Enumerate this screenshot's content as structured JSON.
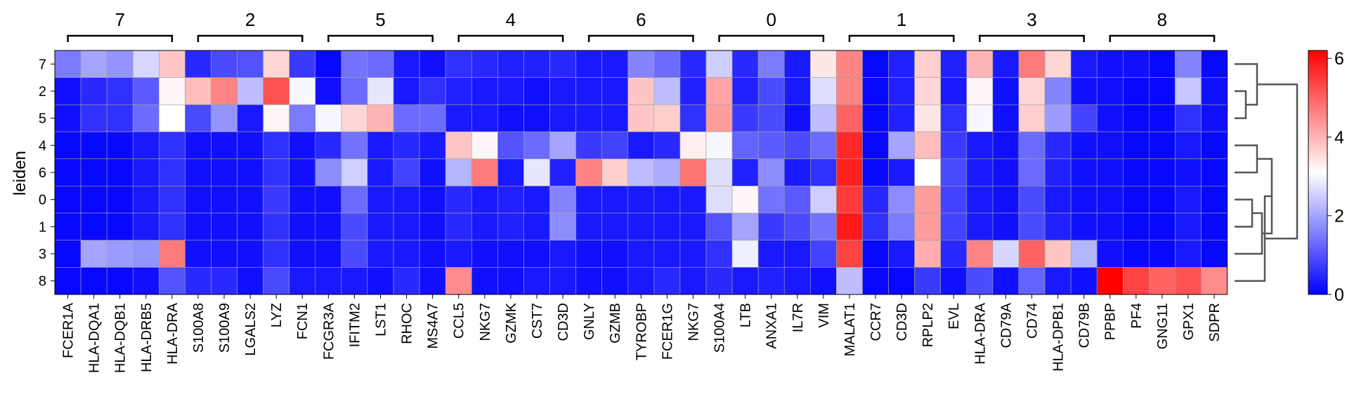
{
  "chart_data": {
    "type": "heatmap",
    "ylabel": "leiden",
    "rows": [
      "7",
      "2",
      "5",
      "4",
      "6",
      "0",
      "1",
      "3",
      "8"
    ],
    "columns": [
      "FCER1A",
      "HLA-DQA1",
      "HLA-DQB1",
      "HLA-DRB5",
      "HLA-DRA",
      "S100A8",
      "S100A9",
      "LGALS2",
      "LYZ",
      "FCN1",
      "FCGR3A",
      "IFITM2",
      "LST1",
      "RHOC",
      "MS4A7",
      "CCL5",
      "NKG7",
      "GZMK",
      "CST7",
      "CD3D",
      "GNLY",
      "GZMB",
      "TYROBP",
      "FCER1G",
      "NKG7",
      "S100A4",
      "LTB",
      "ANXA1",
      "IL7R",
      "VIM",
      "MALAT1",
      "CCR7",
      "CD3D",
      "RPLP2",
      "EVL",
      "HLA-DRA",
      "CD79A",
      "CD74",
      "HLA-DPB1",
      "CD79B",
      "PPBP",
      "PF4",
      "GNG11",
      "GPX1",
      "SDPR"
    ],
    "groups": [
      {
        "label": "7",
        "count": 5
      },
      {
        "label": "2",
        "count": 5
      },
      {
        "label": "5",
        "count": 5
      },
      {
        "label": "4",
        "count": 5
      },
      {
        "label": "6",
        "count": 5
      },
      {
        "label": "0",
        "count": 5
      },
      {
        "label": "1",
        "count": 5
      },
      {
        "label": "3",
        "count": 5
      },
      {
        "label": "8",
        "count": 5
      }
    ],
    "values": [
      [
        1.5,
        2.0,
        1.8,
        2.6,
        3.8,
        0.5,
        0.9,
        1.0,
        3.6,
        0.7,
        0.1,
        1.4,
        1.3,
        0.3,
        0.2,
        0.6,
        0.5,
        0.4,
        0.4,
        0.5,
        0.3,
        0.3,
        1.6,
        1.3,
        0.5,
        2.5,
        0.5,
        1.5,
        0.3,
        3.4,
        4.6,
        0.1,
        0.4,
        3.7,
        0.4,
        4.0,
        0.3,
        4.7,
        3.6,
        0.3,
        0.2,
        0.2,
        0.1,
        1.6,
        0.1
      ],
      [
        0.2,
        0.5,
        0.6,
        1.1,
        3.2,
        3.9,
        4.6,
        2.3,
        5.2,
        3.0,
        0.2,
        1.3,
        2.8,
        0.3,
        0.6,
        0.4,
        0.3,
        0.3,
        0.2,
        0.3,
        0.3,
        0.3,
        3.8,
        2.3,
        0.4,
        4.2,
        0.4,
        0.9,
        0.3,
        2.7,
        4.6,
        0.1,
        0.4,
        3.6,
        0.3,
        3.2,
        0.2,
        3.6,
        1.6,
        0.2,
        0.2,
        0.1,
        0.1,
        2.4,
        0.2
      ],
      [
        0.2,
        0.6,
        0.6,
        1.3,
        3.1,
        0.9,
        1.8,
        0.3,
        3.2,
        1.5,
        3.0,
        3.6,
        4.0,
        1.3,
        1.3,
        0.3,
        0.3,
        0.2,
        0.2,
        0.3,
        0.3,
        0.3,
        3.8,
        3.7,
        0.6,
        4.3,
        0.7,
        0.9,
        0.2,
        2.3,
        5.0,
        0.1,
        0.4,
        3.4,
        0.6,
        3.0,
        0.2,
        3.7,
        1.9,
        0.8,
        0.2,
        0.1,
        0.1,
        0.6,
        0.2
      ],
      [
        0.1,
        0.1,
        0.1,
        0.3,
        0.6,
        0.2,
        0.2,
        0.2,
        0.6,
        0.2,
        0.5,
        1.4,
        0.3,
        0.5,
        0.3,
        3.8,
        3.2,
        1.0,
        1.3,
        2.0,
        0.7,
        0.8,
        0.3,
        0.5,
        3.3,
        3.0,
        1.2,
        1.1,
        0.9,
        1.3,
        5.7,
        0.1,
        2.0,
        3.9,
        0.7,
        0.3,
        0.2,
        1.3,
        0.5,
        0.2,
        0.2,
        0.1,
        0.1,
        0.3,
        0.1
      ],
      [
        0.1,
        0.1,
        0.1,
        0.3,
        0.6,
        0.2,
        0.2,
        0.2,
        0.6,
        0.2,
        1.7,
        2.5,
        0.3,
        0.8,
        0.2,
        2.2,
        4.7,
        0.3,
        2.8,
        0.4,
        4.6,
        3.7,
        2.3,
        2.1,
        4.8,
        2.7,
        0.4,
        1.7,
        0.3,
        0.6,
        5.8,
        0.1,
        0.3,
        3.1,
        0.9,
        0.3,
        0.2,
        1.3,
        0.4,
        0.2,
        0.2,
        0.1,
        0.1,
        0.2,
        0.1
      ],
      [
        0.1,
        0.1,
        0.1,
        0.3,
        0.6,
        0.2,
        0.2,
        0.2,
        0.7,
        0.2,
        0.2,
        1.3,
        0.3,
        0.3,
        0.2,
        0.5,
        0.3,
        0.4,
        0.3,
        1.6,
        0.3,
        0.3,
        0.3,
        0.3,
        0.3,
        2.7,
        3.2,
        1.4,
        1.1,
        2.5,
        5.5,
        0.5,
        1.7,
        4.3,
        0.8,
        0.3,
        0.2,
        0.9,
        0.3,
        0.2,
        0.2,
        0.1,
        0.1,
        0.3,
        0.1
      ],
      [
        0.1,
        0.1,
        0.1,
        0.3,
        0.6,
        0.2,
        0.2,
        0.2,
        0.6,
        0.2,
        0.2,
        0.9,
        0.3,
        0.3,
        0.2,
        0.5,
        0.3,
        0.4,
        0.3,
        1.7,
        0.3,
        0.3,
        0.3,
        0.3,
        0.3,
        1.0,
        2.0,
        0.7,
        0.9,
        1.4,
        5.9,
        0.6,
        1.5,
        4.3,
        0.8,
        0.3,
        0.2,
        0.9,
        0.4,
        0.2,
        0.2,
        0.1,
        0.1,
        0.3,
        0.1
      ],
      [
        0.1,
        2.0,
        1.9,
        1.8,
        4.7,
        0.2,
        0.2,
        0.2,
        0.6,
        0.2,
        0.2,
        0.9,
        0.3,
        0.3,
        0.2,
        0.3,
        0.2,
        0.2,
        0.2,
        0.3,
        0.2,
        0.2,
        0.3,
        0.3,
        0.3,
        0.6,
        2.9,
        0.3,
        0.3,
        0.8,
        5.4,
        0.1,
        0.3,
        4.1,
        0.5,
        4.6,
        2.6,
        5.0,
        3.8,
        2.2,
        0.2,
        0.1,
        0.1,
        0.3,
        0.1
      ],
      [
        0.1,
        0.1,
        0.1,
        0.2,
        1.0,
        0.5,
        0.5,
        0.2,
        0.9,
        0.3,
        0.3,
        0.3,
        0.2,
        0.5,
        0.2,
        4.5,
        0.2,
        0.2,
        0.3,
        0.3,
        0.2,
        0.2,
        0.3,
        0.5,
        0.3,
        0.5,
        0.3,
        0.4,
        0.3,
        0.2,
        2.3,
        0.1,
        0.1,
        0.7,
        0.2,
        0.9,
        0.2,
        1.2,
        0.3,
        0.2,
        6.2,
        5.4,
        5.0,
        5.2,
        4.5
      ]
    ],
    "colorbar": {
      "cmap": "bwr",
      "vmin": 0,
      "vmax": 6.2,
      "ticks": [
        "0",
        "2",
        "4",
        "6"
      ],
      "colors": {
        "low": "#0000ff",
        "mid": "#ffffff",
        "high": "#ff0000"
      }
    },
    "dendrogram": true
  }
}
